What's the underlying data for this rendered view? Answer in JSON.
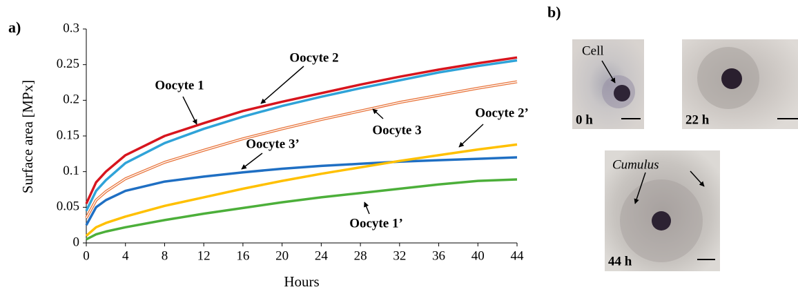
{
  "panel_labels": [
    "a)",
    "b)"
  ],
  "chart_data": {
    "type": "line",
    "x_label": "Hours",
    "y_label": "Surface area [MPx]",
    "x": [
      0,
      1,
      2,
      4,
      8,
      12,
      16,
      20,
      24,
      28,
      32,
      36,
      40,
      44
    ],
    "xlim": [
      0,
      44
    ],
    "xticks": [
      0,
      4,
      8,
      12,
      16,
      20,
      24,
      28,
      32,
      36,
      40,
      44
    ],
    "ylim": [
      0,
      0.3
    ],
    "yticks": [
      0,
      0.05,
      0.1,
      0.15,
      0.2,
      0.25,
      0.3
    ],
    "series": [
      {
        "name": "Oocyte 1",
        "color": "#d7151e",
        "values": [
          0.055,
          0.085,
          0.1,
          0.123,
          0.15,
          0.168,
          0.185,
          0.198,
          0.21,
          0.222,
          0.233,
          0.243,
          0.252,
          0.26
        ]
      },
      {
        "name": "Oocyte 2",
        "color": "#2fa3d8",
        "values": [
          0.045,
          0.073,
          0.088,
          0.112,
          0.14,
          0.16,
          0.177,
          0.192,
          0.205,
          0.217,
          0.228,
          0.239,
          0.248,
          0.256
        ]
      },
      {
        "name": "Oocyte 3",
        "color": "#e8743b",
        "double": true,
        "values": [
          0.035,
          0.06,
          0.072,
          0.09,
          0.113,
          0.13,
          0.146,
          0.16,
          0.173,
          0.185,
          0.197,
          0.207,
          0.217,
          0.226
        ]
      },
      {
        "name": "Oocyte 3’",
        "color": "#1f6fc3",
        "values": [
          0.025,
          0.05,
          0.06,
          0.073,
          0.086,
          0.093,
          0.099,
          0.104,
          0.108,
          0.111,
          0.114,
          0.116,
          0.118,
          0.12
        ]
      },
      {
        "name": "Oocyte 2’",
        "color": "#ffc000",
        "values": [
          0.01,
          0.022,
          0.028,
          0.037,
          0.052,
          0.064,
          0.076,
          0.087,
          0.097,
          0.106,
          0.115,
          0.123,
          0.131,
          0.138
        ]
      },
      {
        "name": "Oocyte 1’",
        "color": "#4caf3a",
        "values": [
          0.005,
          0.012,
          0.016,
          0.022,
          0.032,
          0.041,
          0.049,
          0.057,
          0.064,
          0.07,
          0.076,
          0.082,
          0.087,
          0.089
        ]
      }
    ]
  },
  "images": [
    {
      "time": "0 h",
      "annotation": "Cell"
    },
    {
      "time": "22 h"
    },
    {
      "time": "44 h",
      "annotation": "Cumulus"
    }
  ]
}
